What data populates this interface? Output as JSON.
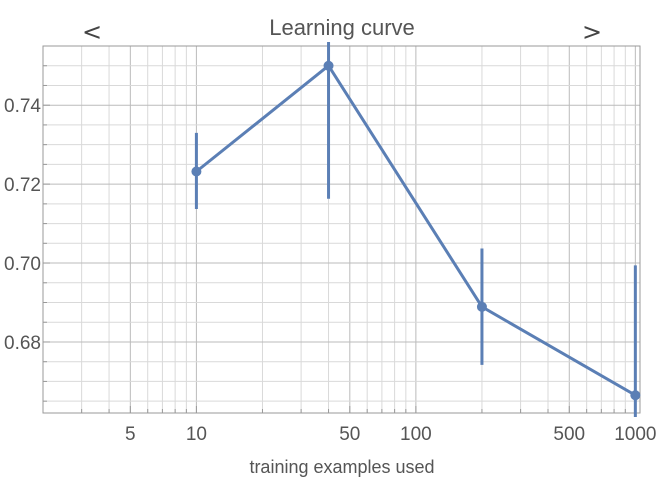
{
  "chart_data": {
    "type": "line",
    "title": "Learning curve",
    "nav": {
      "prev_icon": "chevron-left-icon",
      "prev_glyph": "<",
      "next_icon": "chevron-right-icon",
      "next_glyph": ">"
    },
    "xlabel": "training examples used",
    "ylabel": "",
    "x_scale": "log",
    "xlim": [
      2,
      1050
    ],
    "ylim": [
      0.662,
      0.755
    ],
    "x_ticks": [
      {
        "value": 5,
        "label": "5"
      },
      {
        "value": 10,
        "label": "10"
      },
      {
        "value": 50,
        "label": "50"
      },
      {
        "value": 100,
        "label": "100"
      },
      {
        "value": 500,
        "label": "500"
      },
      {
        "value": 1000,
        "label": "1000"
      }
    ],
    "y_ticks": [
      {
        "value": 0.68,
        "label": "0.68"
      },
      {
        "value": 0.7,
        "label": "0.70"
      },
      {
        "value": 0.72,
        "label": "0.72"
      },
      {
        "value": 0.74,
        "label": "0.74"
      }
    ],
    "grid": true,
    "series": [
      {
        "color": "#5b7fb5",
        "points": [
          {
            "x": 10,
            "y": 0.7232,
            "err_low": 0.7137,
            "err_high": 0.733
          },
          {
            "x": 40,
            "y": 0.75,
            "err_low": 0.7163,
            "err_high": 0.756
          },
          {
            "x": 200,
            "y": 0.6889,
            "err_low": 0.6742,
            "err_high": 0.7037
          },
          {
            "x": 1000,
            "y": 0.6665,
            "err_low": 0.661,
            "err_high": 0.6994
          }
        ]
      }
    ]
  }
}
